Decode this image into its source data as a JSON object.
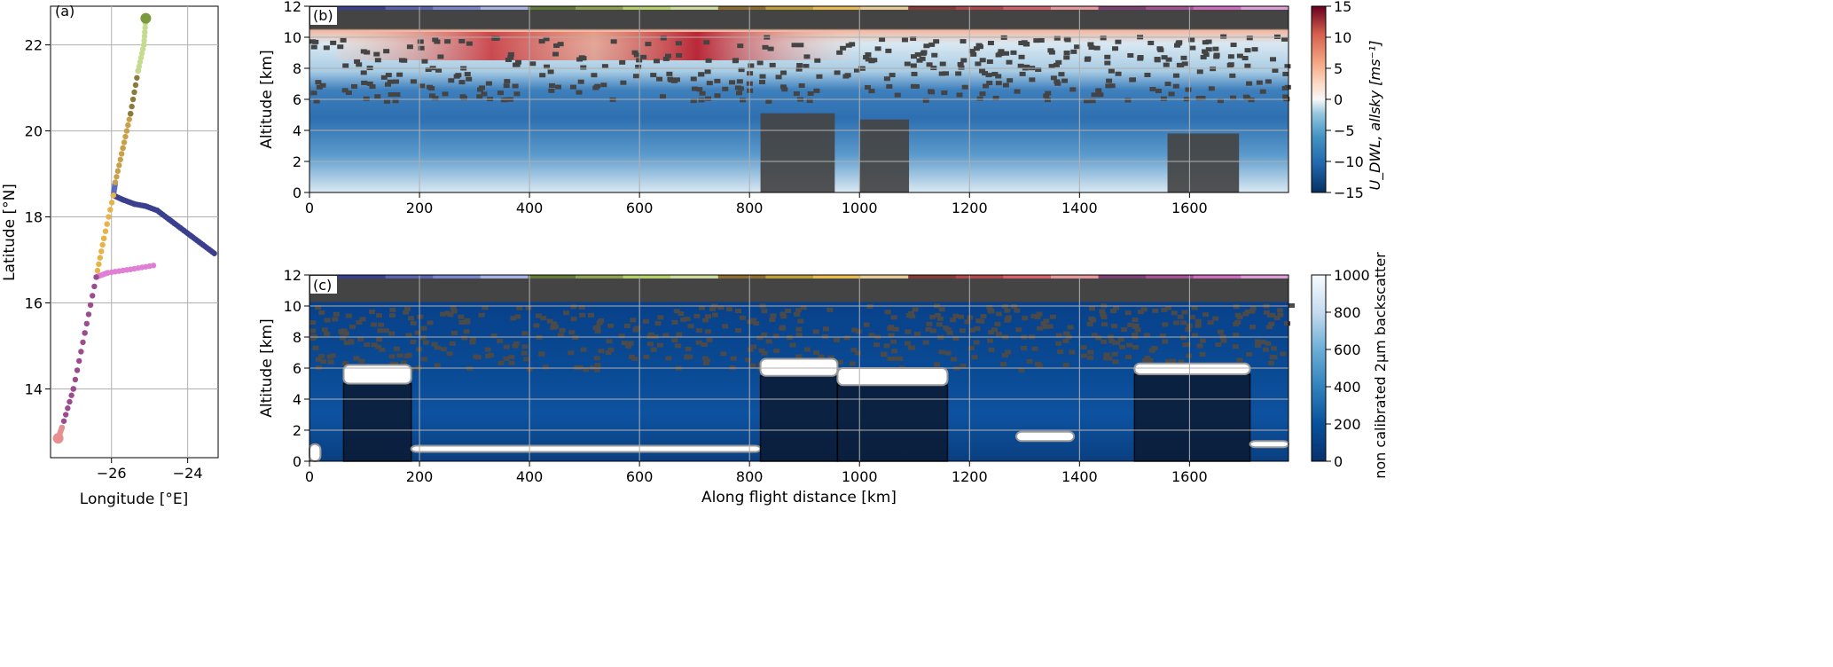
{
  "figure": {
    "panel_a_label": "(a)",
    "panel_b_label": "(b)",
    "panel_c_label": "(c)"
  },
  "chart_data": [
    {
      "id": "a",
      "type": "scatter",
      "xlabel": "Longitude [°E]",
      "ylabel": "Latitude [°N]",
      "xlim": [
        -27.6,
        -23.2
      ],
      "ylim": [
        12.4,
        22.9
      ],
      "xticks": [
        -26,
        -24
      ],
      "xtick_labels": [
        "−26",
        "−24"
      ],
      "yticks": [
        14,
        16,
        18,
        20,
        22
      ],
      "ytick_labels": [
        "14",
        "16",
        "18",
        "20",
        "22"
      ],
      "grid": true,
      "series": [
        {
          "color": "#3a3f8e",
          "points": [
            [
              -23.3,
              17.15
            ],
            [
              -23.6,
              17.35
            ],
            [
              -23.9,
              17.55
            ],
            [
              -24.2,
              17.75
            ],
            [
              -24.5,
              17.95
            ],
            [
              -24.8,
              18.15
            ],
            [
              -25.1,
              18.25
            ],
            [
              -25.4,
              18.3
            ],
            [
              -25.7,
              18.4
            ],
            [
              -25.95,
              18.5
            ]
          ]
        },
        {
          "color": "#5c6bc0",
          "points": [
            [
              -25.95,
              18.5
            ],
            [
              -25.9,
              18.8
            ]
          ]
        },
        {
          "color": "#c9a04a",
          "points": [
            [
              -25.9,
              18.8
            ],
            [
              -25.7,
              19.6
            ],
            [
              -25.5,
              20.4
            ]
          ]
        },
        {
          "color": "#8b7a3a",
          "points": [
            [
              -25.5,
              20.4
            ],
            [
              -25.3,
              21.4
            ]
          ]
        },
        {
          "color": "#c5dc8e",
          "points": [
            [
              -25.3,
              21.4
            ],
            [
              -25.15,
              22.0
            ],
            [
              -25.1,
              22.6
            ]
          ]
        },
        {
          "color": "#e8b24a",
          "points": [
            [
              -25.95,
              18.5
            ],
            [
              -26.2,
              17.5
            ],
            [
              -26.4,
              16.6
            ]
          ]
        },
        {
          "color": "#e07fd6",
          "points": [
            [
              -24.9,
              16.87
            ],
            [
              -25.5,
              16.78
            ],
            [
              -26.1,
              16.7
            ],
            [
              -26.4,
              16.6
            ]
          ]
        },
        {
          "color": "#9b4b8e",
          "points": [
            [
              -26.4,
              16.6
            ],
            [
              -26.7,
              15.3
            ],
            [
              -27.0,
              14.0
            ],
            [
              -27.3,
              13.1
            ]
          ]
        },
        {
          "color": "#e89090",
          "points": [
            [
              -27.3,
              13.1
            ],
            [
              -27.4,
              12.85
            ]
          ]
        }
      ]
    },
    {
      "id": "b",
      "type": "heatmap",
      "xlabel": "",
      "ylabel": "Altitude [km]",
      "xlim": [
        0,
        1780
      ],
      "ylim": [
        0,
        12
      ],
      "xticks": [
        0,
        200,
        400,
        600,
        800,
        1000,
        1200,
        1400,
        1600
      ],
      "yticks": [
        0,
        2,
        4,
        6,
        8,
        10,
        12
      ],
      "colorbar": {
        "label": "U_DWL, allsky [ms⁻¹]",
        "range": [
          -15,
          15
        ],
        "ticks": [
          -15,
          -10,
          -5,
          0,
          5,
          10,
          15
        ],
        "tick_labels": [
          "−15",
          "−10",
          "−5",
          "0",
          "5",
          "10",
          "15"
        ],
        "colormap": "RdBu_r"
      }
    },
    {
      "id": "c",
      "type": "heatmap",
      "xlabel": "Along flight distance [km]",
      "ylabel": "Altitude [km]",
      "xlim": [
        0,
        1780
      ],
      "ylim": [
        0,
        12
      ],
      "xticks": [
        0,
        200,
        400,
        600,
        800,
        1000,
        1200,
        1400,
        1600
      ],
      "yticks": [
        0,
        2,
        4,
        6,
        8,
        10,
        12
      ],
      "colorbar": {
        "label": "non calibrated 2μm backscatter",
        "range": [
          0,
          1000
        ],
        "ticks": [
          0,
          200,
          400,
          600,
          800,
          1000
        ],
        "colormap": "Blues_r"
      },
      "cloud_segments_km": [
        [
          0,
          20,
          0,
          1.1
        ],
        [
          62,
          185,
          5.0,
          6.2
        ],
        [
          185,
          820,
          0.6,
          1.0
        ],
        [
          820,
          960,
          5.5,
          6.6
        ],
        [
          960,
          1160,
          4.9,
          6.0
        ],
        [
          1285,
          1390,
          1.3,
          1.9
        ],
        [
          1500,
          1710,
          5.6,
          6.3
        ],
        [
          1710,
          1780,
          0.9,
          1.3
        ]
      ]
    }
  ],
  "flight_segment_colors": [
    "#3b3f8f",
    "#5b62ad",
    "#7b86cf",
    "#a7b3e4",
    "#637939",
    "#8ca252",
    "#b5cf6b",
    "#cedb9c",
    "#8c6d31",
    "#bd9e39",
    "#e7ba52",
    "#e7cb94",
    "#843c39",
    "#ad494a",
    "#d6616b",
    "#e7969c",
    "#7b4173",
    "#a55194",
    "#ce6dbd",
    "#de9ed6"
  ]
}
